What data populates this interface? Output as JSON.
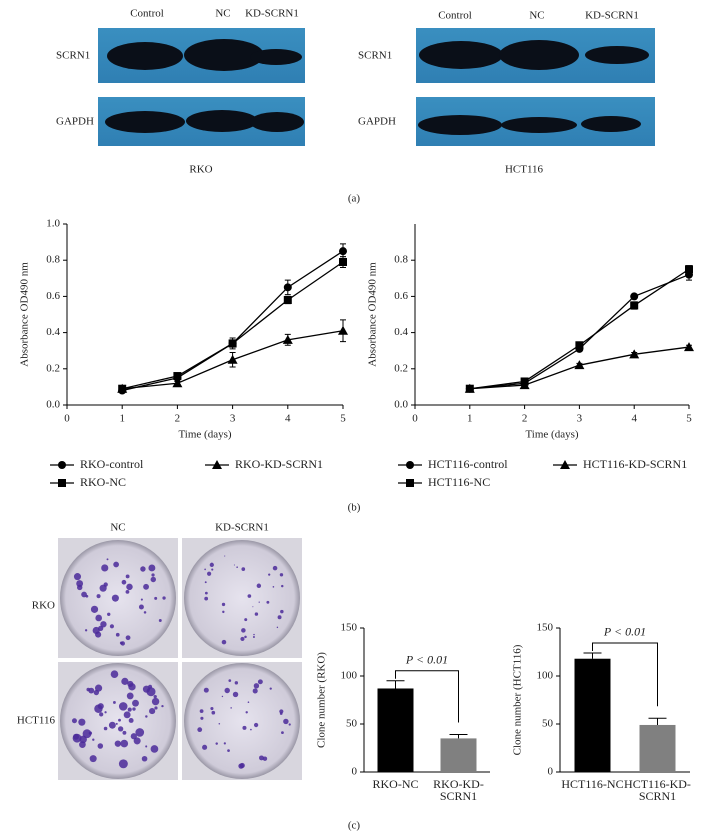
{
  "blots": [
    {
      "lanes": [
        "Control",
        "NC",
        "KD-SCRN1"
      ],
      "rows": [
        "SCRN1",
        "GAPDH"
      ],
      "cell_line": "RKO"
    },
    {
      "lanes": [
        "Control",
        "NC",
        "KD-SCRN1"
      ],
      "rows": [
        "SCRN1",
        "GAPDH"
      ],
      "cell_line": "HCT116"
    }
  ],
  "colonies": {
    "columns": [
      "NC",
      "KD-SCRN1"
    ],
    "rows": [
      "RKO",
      "HCT116"
    ]
  },
  "panel_labels": [
    "(a)",
    "(b)",
    "(c)"
  ],
  "chart_data": [
    {
      "type": "line",
      "xlabel": "Time (days)",
      "ylabel": "Absorbance OD490 nm",
      "xlim": [
        0,
        5
      ],
      "xticks": [
        0,
        1,
        2,
        3,
        4,
        5
      ],
      "ylim": [
        0,
        1
      ],
      "yticks": [
        {
          "value": 0,
          "label": "0.0"
        },
        0.2,
        0.4,
        0.6,
        0.8,
        {
          "value": 1,
          "label": "1.0"
        }
      ],
      "x": [
        1,
        2,
        3,
        4,
        5
      ],
      "series": [
        {
          "name": "RKO-control",
          "color": "#000000",
          "marker": "circle",
          "values": [
            0.08,
            0.15,
            0.34,
            0.65,
            0.85
          ],
          "errors": [
            0.01,
            0.01,
            0.02,
            0.04,
            0.04
          ]
        },
        {
          "name": "RKO-NC",
          "color": "#000000",
          "marker": "square",
          "values": [
            0.09,
            0.16,
            0.34,
            0.58,
            0.79
          ],
          "errors": [
            0.01,
            0.01,
            0.03,
            0.02,
            0.03
          ]
        },
        {
          "name": "RKO-KD-SCRN1",
          "color": "#000000",
          "marker": "triangle",
          "values": [
            0.09,
            0.12,
            0.25,
            0.36,
            0.41
          ],
          "errors": [
            0.01,
            0.01,
            0.04,
            0.03,
            0.06
          ]
        }
      ]
    },
    {
      "type": "line",
      "xlabel": "Time (days)",
      "ylabel": "Absorbance OD490 nm",
      "xlim": [
        0,
        5
      ],
      "xticks": [
        0,
        1,
        2,
        3,
        4,
        5
      ],
      "ylim": [
        0,
        1
      ],
      "yticks": [
        {
          "value": 0,
          "label": "0.0"
        },
        0.2,
        0.4,
        0.6,
        0.8
      ],
      "x": [
        1,
        2,
        3,
        4,
        5
      ],
      "series": [
        {
          "name": "HCT116-control",
          "color": "#000000",
          "marker": "circle",
          "values": [
            0.09,
            0.12,
            0.31,
            0.6,
            0.72
          ],
          "errors": [
            0.01,
            0.01,
            0.01,
            0.01,
            0.03
          ]
        },
        {
          "name": "HCT116-NC",
          "color": "#000000",
          "marker": "square",
          "values": [
            0.09,
            0.13,
            0.33,
            0.55,
            0.75
          ],
          "errors": [
            0.01,
            0.01,
            0.01,
            0.02,
            0.02
          ]
        },
        {
          "name": "HCT116-KD-SCRN1",
          "color": "#000000",
          "marker": "triangle",
          "values": [
            0.09,
            0.11,
            0.22,
            0.28,
            0.32
          ],
          "errors": [
            0.01,
            0.01,
            0.01,
            0.01,
            0.01
          ]
        }
      ]
    },
    {
      "type": "bar",
      "ylabel": "Clone number (RKO)",
      "annotation": "P < 0.01",
      "categories": [
        "RKO-NC",
        "RKO-KD-SCRN1"
      ],
      "values": [
        87,
        35
      ],
      "errors": [
        8,
        4
      ],
      "colors": [
        "#000000",
        "#808080"
      ],
      "ylim": [
        0,
        150
      ],
      "yticks": [
        0,
        50,
        100,
        150
      ]
    },
    {
      "type": "bar",
      "ylabel": "Clone number (HCT116)",
      "annotation": "P < 0.01",
      "categories": [
        "HCT116-NC",
        "HCT116-KD-SCRN1"
      ],
      "values": [
        118,
        49
      ],
      "errors": [
        6,
        7
      ],
      "colors": [
        "#000000",
        "#808080"
      ],
      "ylim": [
        0,
        150
      ],
      "yticks": [
        0,
        50,
        100,
        150
      ]
    }
  ]
}
